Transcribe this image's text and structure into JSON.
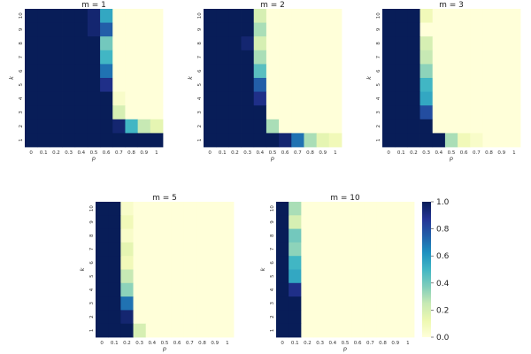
{
  "chart_data": [
    {
      "type": "heatmap",
      "title": "m = 1",
      "xlabel": "p",
      "ylabel": "k",
      "x": [
        "0",
        "0.1",
        "0.2",
        "0.3",
        "0.4",
        "0.5",
        "0.6",
        "0.7",
        "0.8",
        "0.9",
        "1"
      ],
      "y": [
        "10",
        "9",
        "8",
        "7",
        "6",
        "5",
        "4",
        "3",
        "2",
        "1"
      ],
      "values": [
        [
          1,
          1,
          1,
          1,
          1,
          0.95,
          0.55,
          0,
          0,
          0,
          0
        ],
        [
          1,
          1,
          1,
          1,
          1,
          0.95,
          0.75,
          0,
          0,
          0,
          0
        ],
        [
          1,
          1,
          1,
          1,
          1,
          1,
          0.4,
          0,
          0,
          0,
          0
        ],
        [
          1,
          1,
          1,
          1,
          1,
          1,
          0.5,
          0,
          0,
          0,
          0
        ],
        [
          1,
          1,
          1,
          1,
          1,
          1,
          0.7,
          0,
          0,
          0,
          0
        ],
        [
          1,
          1,
          1,
          1,
          1,
          1,
          0.9,
          0,
          0,
          0,
          0
        ],
        [
          1,
          1,
          1,
          1,
          1,
          1,
          1,
          0.05,
          0,
          0,
          0
        ],
        [
          1,
          1,
          1,
          1,
          1,
          1,
          1,
          0.2,
          0,
          0,
          0
        ],
        [
          1,
          1,
          1,
          1,
          1,
          1,
          1,
          0.95,
          0.5,
          0.25,
          0.15
        ],
        [
          1,
          1,
          1,
          1,
          1,
          1,
          1,
          1,
          1,
          1,
          1
        ]
      ]
    },
    {
      "type": "heatmap",
      "title": "m = 2",
      "xlabel": "p",
      "ylabel": "k",
      "x": [
        "0",
        "0.1",
        "0.2",
        "0.3",
        "0.4",
        "0.5",
        "0.6",
        "0.7",
        "0.8",
        "0.9",
        "1"
      ],
      "y": [
        "10",
        "9",
        "8",
        "7",
        "6",
        "5",
        "4",
        "3",
        "2",
        "1"
      ],
      "values": [
        [
          1,
          1,
          1,
          1,
          0.2,
          0,
          0,
          0,
          0,
          0,
          0
        ],
        [
          1,
          1,
          1,
          1,
          0.3,
          0,
          0,
          0,
          0,
          0,
          0
        ],
        [
          1,
          1,
          1,
          0.95,
          0.2,
          0,
          0,
          0,
          0,
          0,
          0
        ],
        [
          1,
          1,
          1,
          1,
          0.3,
          0,
          0,
          0,
          0,
          0,
          0
        ],
        [
          1,
          1,
          1,
          1,
          0.45,
          0,
          0,
          0,
          0,
          0,
          0
        ],
        [
          1,
          1,
          1,
          1,
          0.75,
          0,
          0,
          0,
          0,
          0,
          0
        ],
        [
          1,
          1,
          1,
          1,
          0.9,
          0,
          0,
          0,
          0,
          0,
          0
        ],
        [
          1,
          1,
          1,
          1,
          1,
          0,
          0,
          0,
          0,
          0,
          0
        ],
        [
          1,
          1,
          1,
          1,
          1,
          0.3,
          0,
          0,
          0,
          0,
          0
        ],
        [
          1,
          1,
          1,
          1,
          1,
          1,
          0.95,
          0.7,
          0.3,
          0.15,
          0.1
        ]
      ]
    },
    {
      "type": "heatmap",
      "title": "m = 3",
      "xlabel": "p",
      "ylabel": "k",
      "x": [
        "0",
        "0.1",
        "0.2",
        "0.3",
        "0.4",
        "0.5",
        "0.6",
        "0.7",
        "0.8",
        "0.9",
        "1"
      ],
      "y": [
        "10",
        "9",
        "8",
        "7",
        "6",
        "5",
        "4",
        "3",
        "2",
        "1"
      ],
      "values": [
        [
          1,
          1,
          1,
          0.1,
          0,
          0,
          0,
          0,
          0,
          0,
          0
        ],
        [
          1,
          1,
          1,
          0,
          0,
          0,
          0,
          0,
          0,
          0,
          0
        ],
        [
          1,
          1,
          1,
          0.2,
          0,
          0,
          0,
          0,
          0,
          0,
          0
        ],
        [
          1,
          1,
          1,
          0.25,
          0,
          0,
          0,
          0,
          0,
          0,
          0
        ],
        [
          1,
          1,
          1,
          0.35,
          0,
          0,
          0,
          0,
          0,
          0,
          0
        ],
        [
          1,
          1,
          1,
          0.5,
          0,
          0,
          0,
          0,
          0,
          0,
          0
        ],
        [
          1,
          1,
          1,
          0.55,
          0,
          0,
          0,
          0,
          0,
          0,
          0
        ],
        [
          1,
          1,
          1,
          0.8,
          0,
          0,
          0,
          0,
          0,
          0,
          0
        ],
        [
          1,
          1,
          1,
          1,
          0,
          0,
          0,
          0,
          0,
          0,
          0
        ],
        [
          1,
          1,
          1,
          1,
          1,
          0.3,
          0.1,
          0.05,
          0,
          0,
          0
        ]
      ]
    },
    {
      "type": "heatmap",
      "title": "m = 5",
      "xlabel": "p",
      "ylabel": "k",
      "x": [
        "0",
        "0.1",
        "0.2",
        "0.3",
        "0.4",
        "0.5",
        "0.6",
        "0.7",
        "0.8",
        "0.9",
        "1"
      ],
      "y": [
        "10",
        "9",
        "8",
        "7",
        "6",
        "5",
        "4",
        "3",
        "2",
        "1"
      ],
      "values": [
        [
          1,
          1,
          0.05,
          0,
          0,
          0,
          0,
          0,
          0,
          0,
          0
        ],
        [
          1,
          1,
          0.1,
          0,
          0,
          0,
          0,
          0,
          0,
          0,
          0
        ],
        [
          1,
          1,
          0.05,
          0,
          0,
          0,
          0,
          0,
          0,
          0,
          0
        ],
        [
          1,
          1,
          0.15,
          0,
          0,
          0,
          0,
          0,
          0,
          0,
          0
        ],
        [
          1,
          1,
          0.1,
          0,
          0,
          0,
          0,
          0,
          0,
          0,
          0
        ],
        [
          1,
          1,
          0.25,
          0,
          0,
          0,
          0,
          0,
          0,
          0,
          0
        ],
        [
          1,
          1,
          0.35,
          0,
          0,
          0,
          0,
          0,
          0,
          0,
          0
        ],
        [
          1,
          1,
          0.7,
          0,
          0,
          0,
          0,
          0,
          0,
          0,
          0
        ],
        [
          1,
          1,
          0.95,
          0,
          0,
          0,
          0,
          0,
          0,
          0,
          0
        ],
        [
          1,
          1,
          1,
          0.2,
          0,
          0,
          0,
          0,
          0,
          0,
          0
        ]
      ]
    },
    {
      "type": "heatmap",
      "title": "m = 10",
      "xlabel": "p",
      "ylabel": "k",
      "x": [
        "0",
        "0.1",
        "0.2",
        "0.3",
        "0.4",
        "0.5",
        "0.6",
        "0.7",
        "0.8",
        "0.9",
        "1"
      ],
      "y": [
        "10",
        "9",
        "8",
        "7",
        "6",
        "5",
        "4",
        "3",
        "2",
        "1"
      ],
      "values": [
        [
          1,
          0.3,
          0,
          0,
          0,
          0,
          0,
          0,
          0,
          0,
          0
        ],
        [
          1,
          0.2,
          0,
          0,
          0,
          0,
          0,
          0,
          0,
          0,
          0
        ],
        [
          1,
          0.4,
          0,
          0,
          0,
          0,
          0,
          0,
          0,
          0,
          0
        ],
        [
          1,
          0.35,
          0,
          0,
          0,
          0,
          0,
          0,
          0,
          0,
          0
        ],
        [
          1,
          0.5,
          0,
          0,
          0,
          0,
          0,
          0,
          0,
          0,
          0
        ],
        [
          1,
          0.55,
          0,
          0,
          0,
          0,
          0,
          0,
          0,
          0,
          0
        ],
        [
          1,
          0.9,
          0,
          0,
          0,
          0,
          0,
          0,
          0,
          0,
          0
        ],
        [
          1,
          1,
          0,
          0,
          0,
          0,
          0,
          0,
          0,
          0,
          0
        ],
        [
          1,
          1,
          0,
          0,
          0,
          0,
          0,
          0,
          0,
          0,
          0
        ],
        [
          1,
          1,
          0,
          0,
          0,
          0,
          0,
          0,
          0,
          0,
          0
        ]
      ]
    }
  ],
  "colorbar": {
    "range": [
      0,
      1
    ],
    "ticks": [
      "1.0",
      "0.8",
      "0.6",
      "0.4",
      "0.2",
      "0.0"
    ],
    "colormap": "YlGnBu",
    "colors": [
      "#ffffd9",
      "#edf8b1",
      "#c7e9b4",
      "#7fcdbb",
      "#41b6c4",
      "#1d91c0",
      "#225ea8",
      "#253494",
      "#081d58"
    ]
  }
}
